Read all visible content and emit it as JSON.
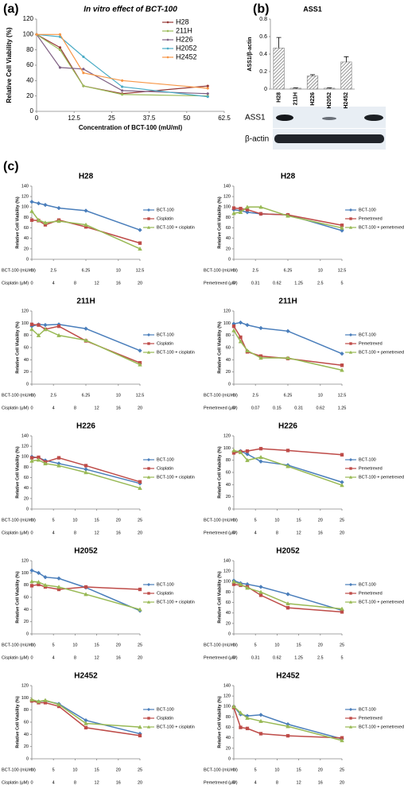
{
  "panels": [
    "(a)",
    "(b)",
    "(c)"
  ],
  "blot": {
    "rows": [
      "ASS1",
      "β-actin"
    ]
  },
  "chart_data": [
    {
      "type": "line",
      "title": "In vitro effect of BCT-100",
      "xlabel": "Concentration of BCT-100 (mU/ml)",
      "ylabel": "Relative Cell Viability (%)",
      "x": [
        0,
        7.8,
        15.6,
        28.5,
        57
      ],
      "xlim": [
        0,
        62.5
      ],
      "xticks": [
        0,
        12.5,
        25,
        37.5,
        50,
        62.5
      ],
      "ylim": [
        0,
        120
      ],
      "yticks": [
        0,
        20,
        40,
        60,
        80,
        100,
        120
      ],
      "legend": "upper right",
      "series": [
        {
          "name": "H28",
          "color": "#953735",
          "marker": "circle",
          "values": [
            100,
            83,
            33,
            23,
            33
          ]
        },
        {
          "name": "211H",
          "color": "#9bbb59",
          "marker": "circle",
          "values": [
            100,
            80,
            33,
            22,
            20
          ]
        },
        {
          "name": "H226",
          "color": "#7f6084",
          "marker": "circle",
          "values": [
            100,
            57,
            55,
            27,
            23
          ]
        },
        {
          "name": "H2052",
          "color": "#4bacc6",
          "marker": "circle",
          "values": [
            100,
            97,
            71,
            32,
            19
          ]
        },
        {
          "name": "H2452",
          "color": "#f79646",
          "marker": "circle",
          "values": [
            100,
            100,
            50,
            40,
            30
          ]
        }
      ]
    },
    {
      "type": "bar",
      "title": "ASS1",
      "ylabel": "ASS1/β-actin",
      "categories": [
        "H28",
        "211H",
        "H226",
        "H2052",
        "H2452"
      ],
      "values": [
        0.47,
        0.01,
        0.15,
        0.01,
        0.31
      ],
      "errors": [
        0.12,
        0.005,
        0.015,
        0.005,
        0.06
      ],
      "color": "#7f7f7f",
      "ylim": [
        0,
        0.8
      ],
      "yticks": [
        0,
        0.2,
        0.4,
        0.6,
        0.8
      ]
    },
    {
      "type": "line",
      "title": "H28",
      "ylabel": "Relative Cell Viability (%)",
      "xlabel": "BCT-100 (mU/ml)",
      "x2label": "Cisplatin (μM)",
      "x": [
        0,
        0.78,
        1.56,
        3.125,
        6.25,
        12.5
      ],
      "xlim": [
        0,
        12.5
      ],
      "xticks": [
        0,
        2.5,
        6.25,
        10,
        12.5
      ],
      "x2ticks": [
        0,
        4,
        8,
        12,
        16,
        20
      ],
      "ylim": [
        0,
        140
      ],
      "yticks": [
        0,
        20,
        40,
        60,
        80,
        100,
        120,
        140
      ],
      "legend": "right",
      "series": [
        {
          "name": "BCT-100",
          "color": "#4a7ebb",
          "marker": "diamond",
          "values": [
            110,
            107,
            104,
            98,
            93,
            56
          ]
        },
        {
          "name": "Cisplatin",
          "color": "#be4b48",
          "marker": "square",
          "values": [
            75,
            74,
            66,
            75,
            62,
            31
          ]
        },
        {
          "name": "BCT-100 + cisplatin",
          "color": "#98b954",
          "marker": "triangle",
          "values": [
            92,
            75,
            70,
            73,
            66,
            20
          ]
        }
      ]
    },
    {
      "type": "line",
      "title": "H28",
      "ylabel": "Relative Cell Viability (%)",
      "xlabel": "BCT-100 (mU/ml)",
      "x2label": "Pemetrexed (μM)",
      "x": [
        0,
        0.78,
        1.56,
        3.125,
        6.25,
        12.5
      ],
      "xlim": [
        0,
        12.5
      ],
      "xticks": [
        0,
        2.5,
        6.25,
        10,
        12.5
      ],
      "x2ticks": [
        0,
        0.31,
        0.62,
        1.25,
        2.5,
        5
      ],
      "ylim": [
        0,
        140
      ],
      "yticks": [
        0,
        20,
        40,
        60,
        80,
        100,
        120,
        140
      ],
      "legend": "right",
      "series": [
        {
          "name": "BCT-100",
          "color": "#4a7ebb",
          "marker": "diamond",
          "values": [
            95,
            93,
            90,
            87,
            85,
            55
          ]
        },
        {
          "name": "Pemetrexed",
          "color": "#be4b48",
          "marker": "square",
          "values": [
            98,
            97,
            95,
            87,
            85,
            65
          ]
        },
        {
          "name": "BCT-100 + pemetrexed",
          "color": "#98b954",
          "marker": "triangle",
          "values": [
            88,
            90,
            100,
            100,
            83,
            60
          ]
        }
      ]
    },
    {
      "type": "line",
      "title": "211H",
      "ylabel": "Relative Cell Viability (%)",
      "xlabel": "BCT-100 (mU/ml)",
      "x2label": "Cisplatin (μM)",
      "x": [
        0,
        0.78,
        1.56,
        3.125,
        6.25,
        12.5
      ],
      "xlim": [
        0,
        12.5
      ],
      "xticks": [
        0,
        2.5,
        6.25,
        10,
        12.5
      ],
      "x2ticks": [
        0,
        4,
        8,
        12,
        16,
        20
      ],
      "ylim": [
        0,
        120
      ],
      "yticks": [
        0,
        20,
        40,
        60,
        80,
        100,
        120
      ],
      "legend": "right",
      "series": [
        {
          "name": "BCT-100",
          "color": "#4a7ebb",
          "marker": "diamond",
          "values": [
            95,
            98,
            97,
            98,
            91,
            55
          ]
        },
        {
          "name": "Cisplatin",
          "color": "#be4b48",
          "marker": "square",
          "values": [
            98,
            97,
            90,
            95,
            71,
            35
          ]
        },
        {
          "name": "BCT-100 + cisplatin",
          "color": "#98b954",
          "marker": "triangle",
          "values": [
            90,
            80,
            90,
            80,
            72,
            32
          ]
        }
      ]
    },
    {
      "type": "line",
      "title": "211H",
      "ylabel": "Relative Cell Viability (%)",
      "xlabel": "BCT-100 (mU/ml)",
      "x2label": "Pemetrexed (μM)",
      "x": [
        0,
        0.78,
        1.56,
        3.125,
        6.25,
        12.5
      ],
      "xlim": [
        0,
        12.5
      ],
      "xticks": [
        0,
        2.5,
        6.25,
        10,
        12.5
      ],
      "x2ticks": [
        0,
        0.07,
        0.15,
        0.31,
        0.62,
        1.25
      ],
      "ylim": [
        0,
        120
      ],
      "yticks": [
        0,
        20,
        40,
        60,
        80,
        100,
        120
      ],
      "legend": "right",
      "series": [
        {
          "name": "BCT-100",
          "color": "#4a7ebb",
          "marker": "diamond",
          "values": [
            99,
            101,
            97,
            92,
            87,
            50
          ]
        },
        {
          "name": "Pemetrexed",
          "color": "#be4b48",
          "marker": "square",
          "values": [
            95,
            77,
            53,
            46,
            42,
            31
          ]
        },
        {
          "name": "BCT-100 + pemetrexed",
          "color": "#98b954",
          "marker": "triangle",
          "values": [
            88,
            70,
            55,
            43,
            43,
            23
          ]
        }
      ]
    },
    {
      "type": "line",
      "title": "H226",
      "ylabel": "Relative Cell Viability (%)",
      "xlabel": "BCT-100 (mU/ml)",
      "x2label": "Cisplatin (μM)",
      "x": [
        0,
        1.56,
        3.125,
        6.25,
        12.5,
        25
      ],
      "xlim": [
        0,
        25
      ],
      "xticks": [
        0,
        5,
        10,
        15,
        20,
        25
      ],
      "x2ticks": [
        0,
        4,
        8,
        12,
        16,
        20
      ],
      "ylim": [
        0,
        140
      ],
      "yticks": [
        0,
        20,
        40,
        60,
        80,
        100,
        120,
        140
      ],
      "legend": "right",
      "series": [
        {
          "name": "BCT-100",
          "color": "#4a7ebb",
          "marker": "diamond",
          "values": [
            100,
            98,
            93,
            87,
            76,
            49
          ]
        },
        {
          "name": "Cisplatin",
          "color": "#be4b48",
          "marker": "square",
          "values": [
            98,
            99,
            90,
            98,
            83,
            52
          ]
        },
        {
          "name": "BCT-100 + cisplatin",
          "color": "#98b954",
          "marker": "triangle",
          "values": [
            92,
            94,
            87,
            83,
            70,
            40
          ]
        }
      ]
    },
    {
      "type": "line",
      "title": "H226",
      "ylabel": "Relative Cell Viability (%)",
      "xlabel": "BCT-100 (mU/ml)",
      "x2label": "Pemetrexed (μM)",
      "x": [
        0,
        1.56,
        3.125,
        6.25,
        12.5,
        25
      ],
      "xlim": [
        0,
        25
      ],
      "xticks": [
        0,
        5,
        10,
        15,
        20,
        25
      ],
      "x2ticks": [
        0,
        4,
        8,
        12,
        16,
        20
      ],
      "ylim": [
        0,
        120
      ],
      "yticks": [
        0,
        20,
        40,
        60,
        80,
        100,
        120
      ],
      "legend": "right",
      "series": [
        {
          "name": "BCT-100",
          "color": "#4a7ebb",
          "marker": "diamond",
          "values": [
            94,
            95,
            90,
            78,
            72,
            44
          ]
        },
        {
          "name": "Pemetrexed",
          "color": "#be4b48",
          "marker": "square",
          "values": [
            92,
            94,
            95,
            99,
            96,
            89
          ]
        },
        {
          "name": "BCT-100 + pemetrexed",
          "color": "#98b954",
          "marker": "triangle",
          "values": [
            96,
            93,
            80,
            85,
            70,
            39
          ]
        }
      ]
    },
    {
      "type": "line",
      "title": "H2052",
      "ylabel": "Relative Cell Viability (%)",
      "xlabel": "BCT-100 (mU/ml)",
      "x2label": "Cisplatin (μM)",
      "x": [
        0,
        1.56,
        3.125,
        6.25,
        12.5,
        25
      ],
      "xlim": [
        0,
        25
      ],
      "xticks": [
        0,
        5,
        10,
        15,
        20,
        25
      ],
      "x2ticks": [
        0,
        4,
        8,
        12,
        16,
        20
      ],
      "ylim": [
        0,
        120
      ],
      "yticks": [
        0,
        20,
        40,
        60,
        80,
        100,
        120
      ],
      "legend": "right",
      "series": [
        {
          "name": "BCT-100",
          "color": "#4a7ebb",
          "marker": "diamond",
          "values": [
            104,
            100,
            93,
            91,
            76,
            38
          ]
        },
        {
          "name": "Cisplatin",
          "color": "#be4b48",
          "marker": "square",
          "values": [
            79,
            81,
            77,
            73,
            77,
            73
          ]
        },
        {
          "name": "BCT-100 + cisplatin",
          "color": "#98b954",
          "marker": "triangle",
          "values": [
            86,
            85,
            80,
            77,
            65,
            40
          ]
        }
      ]
    },
    {
      "type": "line",
      "title": "H2052",
      "ylabel": "Relative Cell Viability (%)",
      "xlabel": "BCT-100 (mU/ml)",
      "x2label": "Pemetrexed (μM)",
      "x": [
        0,
        1.56,
        3.125,
        6.25,
        12.5,
        25
      ],
      "xlim": [
        0,
        25
      ],
      "xticks": [
        0,
        5,
        10,
        15,
        20,
        25
      ],
      "x2ticks": [
        0,
        0.31,
        0.62,
        1.25,
        2.5,
        5
      ],
      "ylim": [
        0,
        140
      ],
      "yticks": [
        0,
        20,
        40,
        60,
        80,
        100,
        120,
        140
      ],
      "legend": "right",
      "series": [
        {
          "name": "BCT-100",
          "color": "#4a7ebb",
          "marker": "diamond",
          "values": [
            102,
            97,
            95,
            90,
            76,
            45
          ]
        },
        {
          "name": "Pemetrexed",
          "color": "#be4b48",
          "marker": "square",
          "values": [
            95,
            93,
            90,
            74,
            50,
            42
          ]
        },
        {
          "name": "BCT-100 + pemetrexed",
          "color": "#98b954",
          "marker": "triangle",
          "values": [
            100,
            95,
            88,
            80,
            58,
            48
          ]
        }
      ]
    },
    {
      "type": "line",
      "title": "H2452",
      "ylabel": "Relative Cell Viability (%)",
      "xlabel": "BCT-100 (mU/ml)",
      "x2label": "Cisplatin (μM)",
      "x": [
        0,
        1.56,
        3.125,
        6.25,
        12.5,
        25
      ],
      "xlim": [
        0,
        25
      ],
      "xticks": [
        0,
        5,
        10,
        15,
        20,
        25
      ],
      "x2ticks": [
        0,
        4,
        8,
        12,
        16,
        20
      ],
      "ylim": [
        0,
        120
      ],
      "yticks": [
        0,
        20,
        40,
        60,
        80,
        100,
        120
      ],
      "legend": "right",
      "series": [
        {
          "name": "BCT-100",
          "color": "#4a7ebb",
          "marker": "diamond",
          "values": [
            95,
            94,
            95,
            90,
            63,
            41
          ]
        },
        {
          "name": "Cisplatin",
          "color": "#be4b48",
          "marker": "square",
          "values": [
            95,
            92,
            92,
            86,
            51,
            38
          ]
        },
        {
          "name": "BCT-100 + cisplatin",
          "color": "#98b954",
          "marker": "triangle",
          "values": [
            97,
            94,
            96,
            89,
            58,
            52
          ]
        }
      ]
    },
    {
      "type": "line",
      "title": "H2452",
      "ylabel": "Relative Cell Viability (%)",
      "xlabel": "BCT-100 (mU/ml)",
      "x2label": "Pemetrexed (μM)",
      "x": [
        0,
        1.56,
        3.125,
        6.25,
        12.5,
        25
      ],
      "xlim": [
        0,
        25
      ],
      "xticks": [
        0,
        5,
        10,
        15,
        20,
        25
      ],
      "x2ticks": [
        0,
        4,
        8,
        12,
        16,
        20
      ],
      "ylim": [
        0,
        140
      ],
      "yticks": [
        0,
        20,
        40,
        60,
        80,
        100,
        120,
        140
      ],
      "legend": "right",
      "series": [
        {
          "name": "BCT-100",
          "color": "#4a7ebb",
          "marker": "diamond",
          "values": [
            100,
            85,
            82,
            84,
            66,
            38
          ]
        },
        {
          "name": "Pemetrexed",
          "color": "#be4b48",
          "marker": "square",
          "values": [
            98,
            60,
            58,
            48,
            44,
            40
          ]
        },
        {
          "name": "BCT-100 + pemetrexed",
          "color": "#98b954",
          "marker": "triangle",
          "values": [
            100,
            88,
            78,
            72,
            62,
            35
          ]
        }
      ]
    }
  ]
}
